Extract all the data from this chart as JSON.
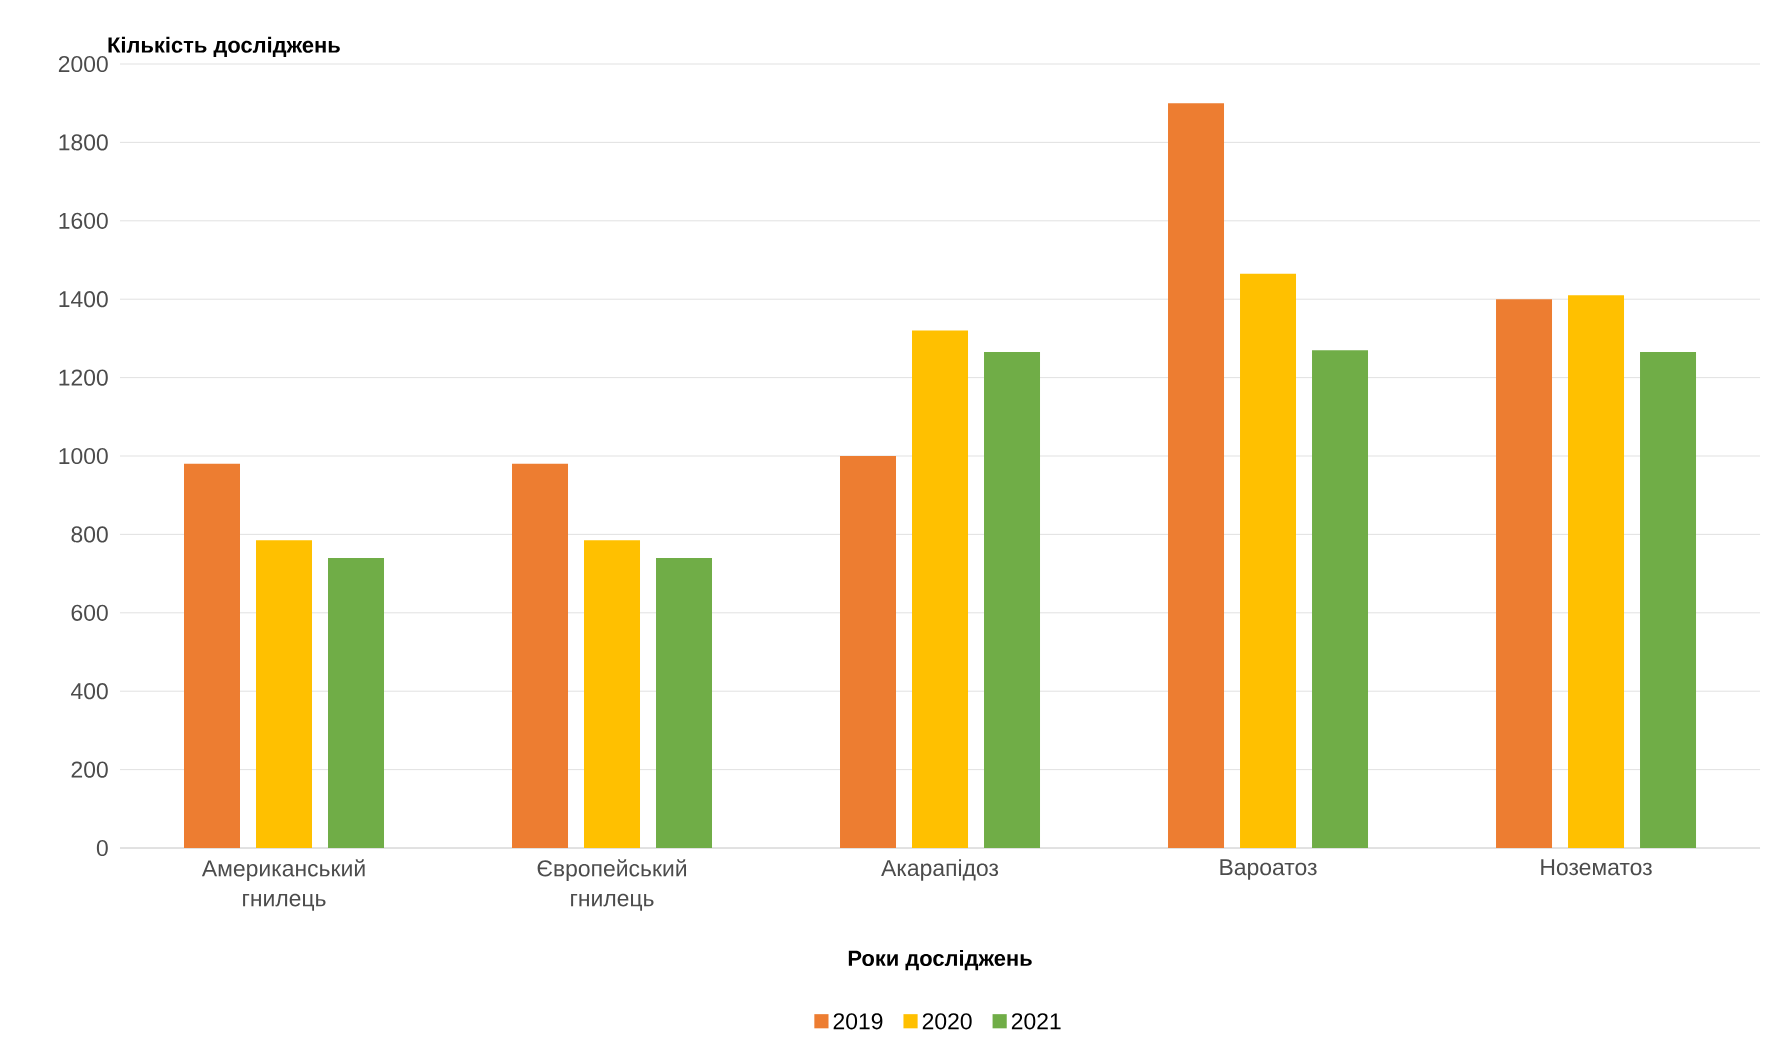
{
  "chart_data": {
    "type": "bar",
    "ylabel": "Кількість досліджень",
    "xlabel": "Роки досліджень",
    "categories": [
      "Американський гнилець",
      "Європейський гнилець",
      "Акарапідоз",
      "Вароатоз",
      "Нозематоз"
    ],
    "series": [
      {
        "name": "2019",
        "color": "#ed7d31",
        "values": [
          980,
          980,
          1000,
          1900,
          1400
        ]
      },
      {
        "name": "2020",
        "color": "#ffc000",
        "values": [
          785,
          785,
          1320,
          1465,
          1410
        ]
      },
      {
        "name": "2021",
        "color": "#70ad47",
        "values": [
          740,
          740,
          1265,
          1270,
          1265
        ]
      }
    ],
    "ylim": [
      0,
      2000
    ],
    "yticks": [
      0,
      200,
      400,
      600,
      800,
      1000,
      1200,
      1400,
      1600,
      1800,
      2000
    ],
    "grid": "y",
    "legend": "bottom"
  }
}
